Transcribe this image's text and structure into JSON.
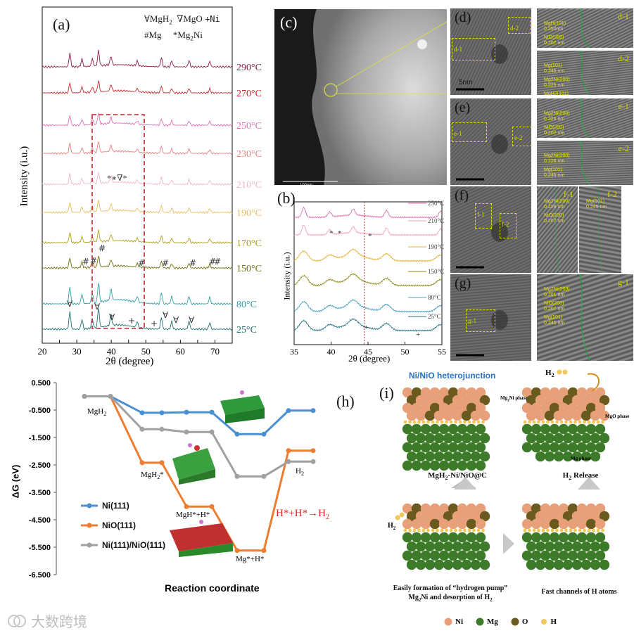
{
  "panels": {
    "a": {
      "label": "(a)",
      "ylabel": "Intensity (i.u.)",
      "xlabel": "2θ (degree)",
      "legend": {
        "l1": "∀MgH",
        "l1sub": "2",
        "l2": "∇MgO",
        "l3": "+Ni",
        "l4": "#Mg",
        "l5": "*Mg",
        "l5sub": "2",
        "l5end": "Ni"
      },
      "annotation": "*∗∇*"
    },
    "b": {
      "label": "(b)",
      "ylabel": "Intensity (i.u.)",
      "xlabel": "2θ (degree)"
    },
    "c": {
      "label": "(c)",
      "scale": "100nm"
    },
    "d": {
      "label": "(d)",
      "scale": "5nm",
      "boxes": [
        "d-1",
        "d-2"
      ],
      "zoom1": {
        "title": "d-1",
        "lines": [
          "MgH(101)",
          "0.250nm",
          "NiO(200)",
          "0.207 nm"
        ]
      },
      "zoom2": {
        "title": "d-2",
        "lines": [
          "Mg(101)",
          "0.245 nm",
          "Mg2Ni(200)",
          "0.225 nm",
          "MgH2(101)",
          "0.250 nm"
        ]
      }
    },
    "e": {
      "label": "(e)",
      "boxes": [
        "e-1",
        "e-2"
      ],
      "zoom1": {
        "title": "e-1",
        "lines": [
          "Mg2Ni(200)",
          "0.226 nm",
          "NiO(200)",
          "0.207 nm"
        ]
      },
      "zoom2": {
        "title": "e-2",
        "lines": [
          "Mg2Ni(200)",
          "0.226 nm",
          "Mg(101)",
          "0.245 nm"
        ]
      }
    },
    "f": {
      "label": "(f)",
      "boxes": [
        "f-1",
        "f-2"
      ],
      "zoom1": {
        "title": "f-1",
        "lines": [
          "Mg2Ni(200)",
          "0.226 nm",
          "NiO(200)",
          "0.207 nm"
        ]
      },
      "zoom2": {
        "title": "f-2",
        "lines": [
          "Mg(101)",
          "0.245 nm"
        ]
      }
    },
    "g": {
      "label": "(g)",
      "boxes": [
        "g-1"
      ],
      "zoom1": {
        "title": "g-1",
        "lines": [
          "Mg2Ni(203)",
          "0.201 nm",
          "NiO(200)",
          "0.207 nm",
          "Mg(101)",
          "0.245 nm"
        ]
      }
    },
    "h": {
      "label": "(h)",
      "ylabel": "ΔG (eV)",
      "xlabel": "Reaction coordinate",
      "state_labels": {
        "mgh2": "MgH",
        "mgh2sub": "2",
        "mgh2star": "MgH",
        "mgh2starsub": "2",
        "mgh2starend": "*",
        "mghh": "MgH*+H*",
        "mgh": "Mg*+H*",
        "h2": "H",
        "h2sub": "2"
      },
      "reaction": "H*+H*→H",
      "reaction_sub": "2"
    },
    "i": {
      "label": "(i)",
      "title": "Ni/NiO heterojunction",
      "cap1": "MgH",
      "cap1sub": "2",
      "cap1end": "-Ni/NiO@C",
      "cap2": "H",
      "cap2sub": "2",
      "cap2end": " Release",
      "cap3a": "Easily formation  of “hydrogen pump”",
      "cap3b": "Mg",
      "cap3bsub": "2",
      "cap3bend": "Ni and desorption of H",
      "cap3bend2": "2",
      "cap4": "Fast channels of H atoms",
      "phase_mg2ni": "Mg",
      "phase_mg2nisub": "2",
      "phase_mg2niend": "Ni phase",
      "phase_mgo": "MgO phase",
      "phase_mg": "Mg phase",
      "h2_top": "H",
      "h2_topsub": "2",
      "h2_left": "H",
      "h2_leftsub": "2",
      "legend": [
        {
          "name": "Ni",
          "color": "#e8a07a"
        },
        {
          "name": "Mg",
          "color": "#3d7a2a"
        },
        {
          "name": "O",
          "color": "#6b5a1e"
        },
        {
          "name": "H",
          "color": "#f2c75a"
        }
      ]
    }
  },
  "watermark": "大数跨境",
  "chart_data": [
    {
      "type": "line",
      "id": "a",
      "xlabel": "2θ (degree)",
      "ylabel": "Intensity (i.u.)",
      "xlim": [
        20,
        75
      ],
      "xticks": [
        20,
        25,
        30,
        35,
        40,
        45,
        50,
        55,
        60,
        65,
        70,
        75
      ],
      "series": [
        {
          "name": "290°C",
          "color": "#8b1a4a"
        },
        {
          "name": "270°C",
          "color": "#c8282d"
        },
        {
          "name": "250°C",
          "color": "#e070b0"
        },
        {
          "name": "230°C",
          "color": "#e88080"
        },
        {
          "name": "210°C",
          "color": "#f0b8c8"
        },
        {
          "name": "190°C",
          "color": "#e8c060"
        },
        {
          "name": "170°C",
          "color": "#b0a020"
        },
        {
          "name": "150°C",
          "color": "#707010"
        },
        {
          "name": "80°C",
          "color": "#30a0a8"
        },
        {
          "name": "25°C",
          "color": "#207070"
        }
      ]
    },
    {
      "type": "line",
      "id": "b",
      "xlabel": "2θ (degree)",
      "ylabel": "Intensity (i.u.)",
      "xlim": [
        35,
        55
      ],
      "xticks": [
        35,
        40,
        45,
        50,
        55
      ],
      "series": [
        {
          "name": "250°C",
          "color": "#e070b0"
        },
        {
          "name": "210°C",
          "color": "#f0a0c0"
        },
        {
          "name": "190°C",
          "color": "#e8b030"
        },
        {
          "name": "150°C",
          "color": "#8a8a18"
        },
        {
          "name": "80°C",
          "color": "#40a0c0"
        },
        {
          "name": "25°C",
          "color": "#207080"
        }
      ]
    },
    {
      "type": "line",
      "id": "h",
      "xlabel": "Reaction coordinate",
      "ylabel": "ΔG (eV)",
      "ylim": [
        -6.5,
        0.5
      ],
      "yticks": [
        0.5,
        -0.5,
        -1.5,
        -2.5,
        -3.5,
        -4.5,
        -5.5,
        -6.5
      ],
      "series": [
        {
          "name": "Ni(111)",
          "color": "#4a90d0",
          "values": [
            0,
            0,
            -0.6,
            -0.6,
            -0.58,
            -0.58,
            -1.38,
            -1.38,
            -0.52,
            -0.52
          ]
        },
        {
          "name": "NiO(111)",
          "color": "#ee7d30",
          "values": [
            0,
            0,
            -2.42,
            -2.42,
            -4.02,
            -4.02,
            -5.62,
            -5.62,
            -1.98,
            -1.98
          ]
        },
        {
          "name": "Ni(111)/NiO(111)",
          "color": "#a0a0a0",
          "values": [
            0,
            0,
            -1.2,
            -1.2,
            -1.3,
            -1.3,
            -2.92,
            -2.92,
            -2.38,
            -2.38
          ]
        }
      ]
    }
  ]
}
